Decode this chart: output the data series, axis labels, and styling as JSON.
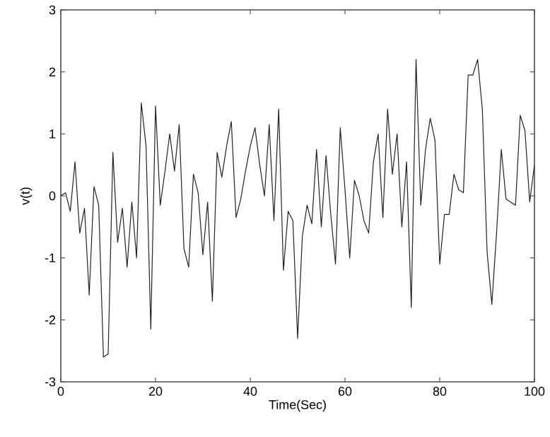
{
  "chart_data": {
    "type": "line",
    "xlabel": "Time(Sec)",
    "ylabel": "v(t)",
    "x": [
      0,
      1,
      2,
      3,
      4,
      5,
      6,
      7,
      8,
      9,
      10,
      11,
      12,
      13,
      14,
      15,
      16,
      17,
      18,
      19,
      20,
      21,
      22,
      23,
      24,
      25,
      26,
      27,
      28,
      29,
      30,
      31,
      32,
      33,
      34,
      35,
      36,
      37,
      38,
      39,
      40,
      41,
      42,
      43,
      44,
      45,
      46,
      47,
      48,
      49,
      50,
      51,
      52,
      53,
      54,
      55,
      56,
      57,
      58,
      59,
      60,
      61,
      62,
      63,
      64,
      65,
      66,
      67,
      68,
      69,
      70,
      71,
      72,
      73,
      74,
      75,
      76,
      77,
      78,
      79,
      80,
      81,
      82,
      83,
      84,
      85,
      86,
      87,
      88,
      89,
      90,
      91,
      92,
      93,
      94,
      95,
      96,
      97,
      98,
      99,
      100
    ],
    "series": [
      {
        "color": "#222222",
        "values": [
          0,
          0.05,
          -0.25,
          0.55,
          -0.6,
          -0.2,
          -1.6,
          0.15,
          -0.15,
          -2.6,
          -2.55,
          0.7,
          -0.75,
          -0.2,
          -1.15,
          -0.1,
          -1.0,
          1.5,
          0.8,
          -2.15,
          1.45,
          -0.15,
          0.4,
          1.0,
          0.4,
          1.15,
          -0.85,
          -1.15,
          0.35,
          0.05,
          -0.95,
          -0.1,
          -1.7,
          0.7,
          0.3,
          0.8,
          1.2,
          -0.35,
          -0.05,
          0.4,
          0.8,
          1.1,
          0.5,
          0,
          1.15,
          -0.4,
          1.4,
          -1.2,
          -0.25,
          -0.4,
          -2.3,
          -0.65,
          -0.15,
          -0.45,
          0.75,
          -0.5,
          0.65,
          -0.3,
          -1.1,
          1.1,
          0.1,
          -1.0,
          0.25,
          0.0,
          -0.4,
          -0.6,
          0.55,
          1.0,
          -0.35,
          1.4,
          0.35,
          1.0,
          -0.5,
          0.55,
          -1.8,
          2.2,
          -0.15,
          0.75,
          1.25,
          0.9,
          -1.1,
          -0.3,
          -0.3,
          0.35,
          0.1,
          0.05,
          1.95,
          1.95,
          2.2,
          1.4,
          -0.9,
          -1.75,
          -0.6,
          0.75,
          -0.05,
          -0.1,
          -0.15,
          1.3,
          1.05,
          -0.1,
          0.5
        ]
      }
    ],
    "xlim": [
      0,
      100
    ],
    "xticks": [
      0,
      20,
      40,
      60,
      80,
      100
    ],
    "ylim": [
      -3,
      3
    ],
    "yticks": [
      -3,
      -2,
      -1,
      0,
      1,
      2,
      3
    ],
    "grid": false,
    "marker": "none",
    "line_style": "solid"
  }
}
